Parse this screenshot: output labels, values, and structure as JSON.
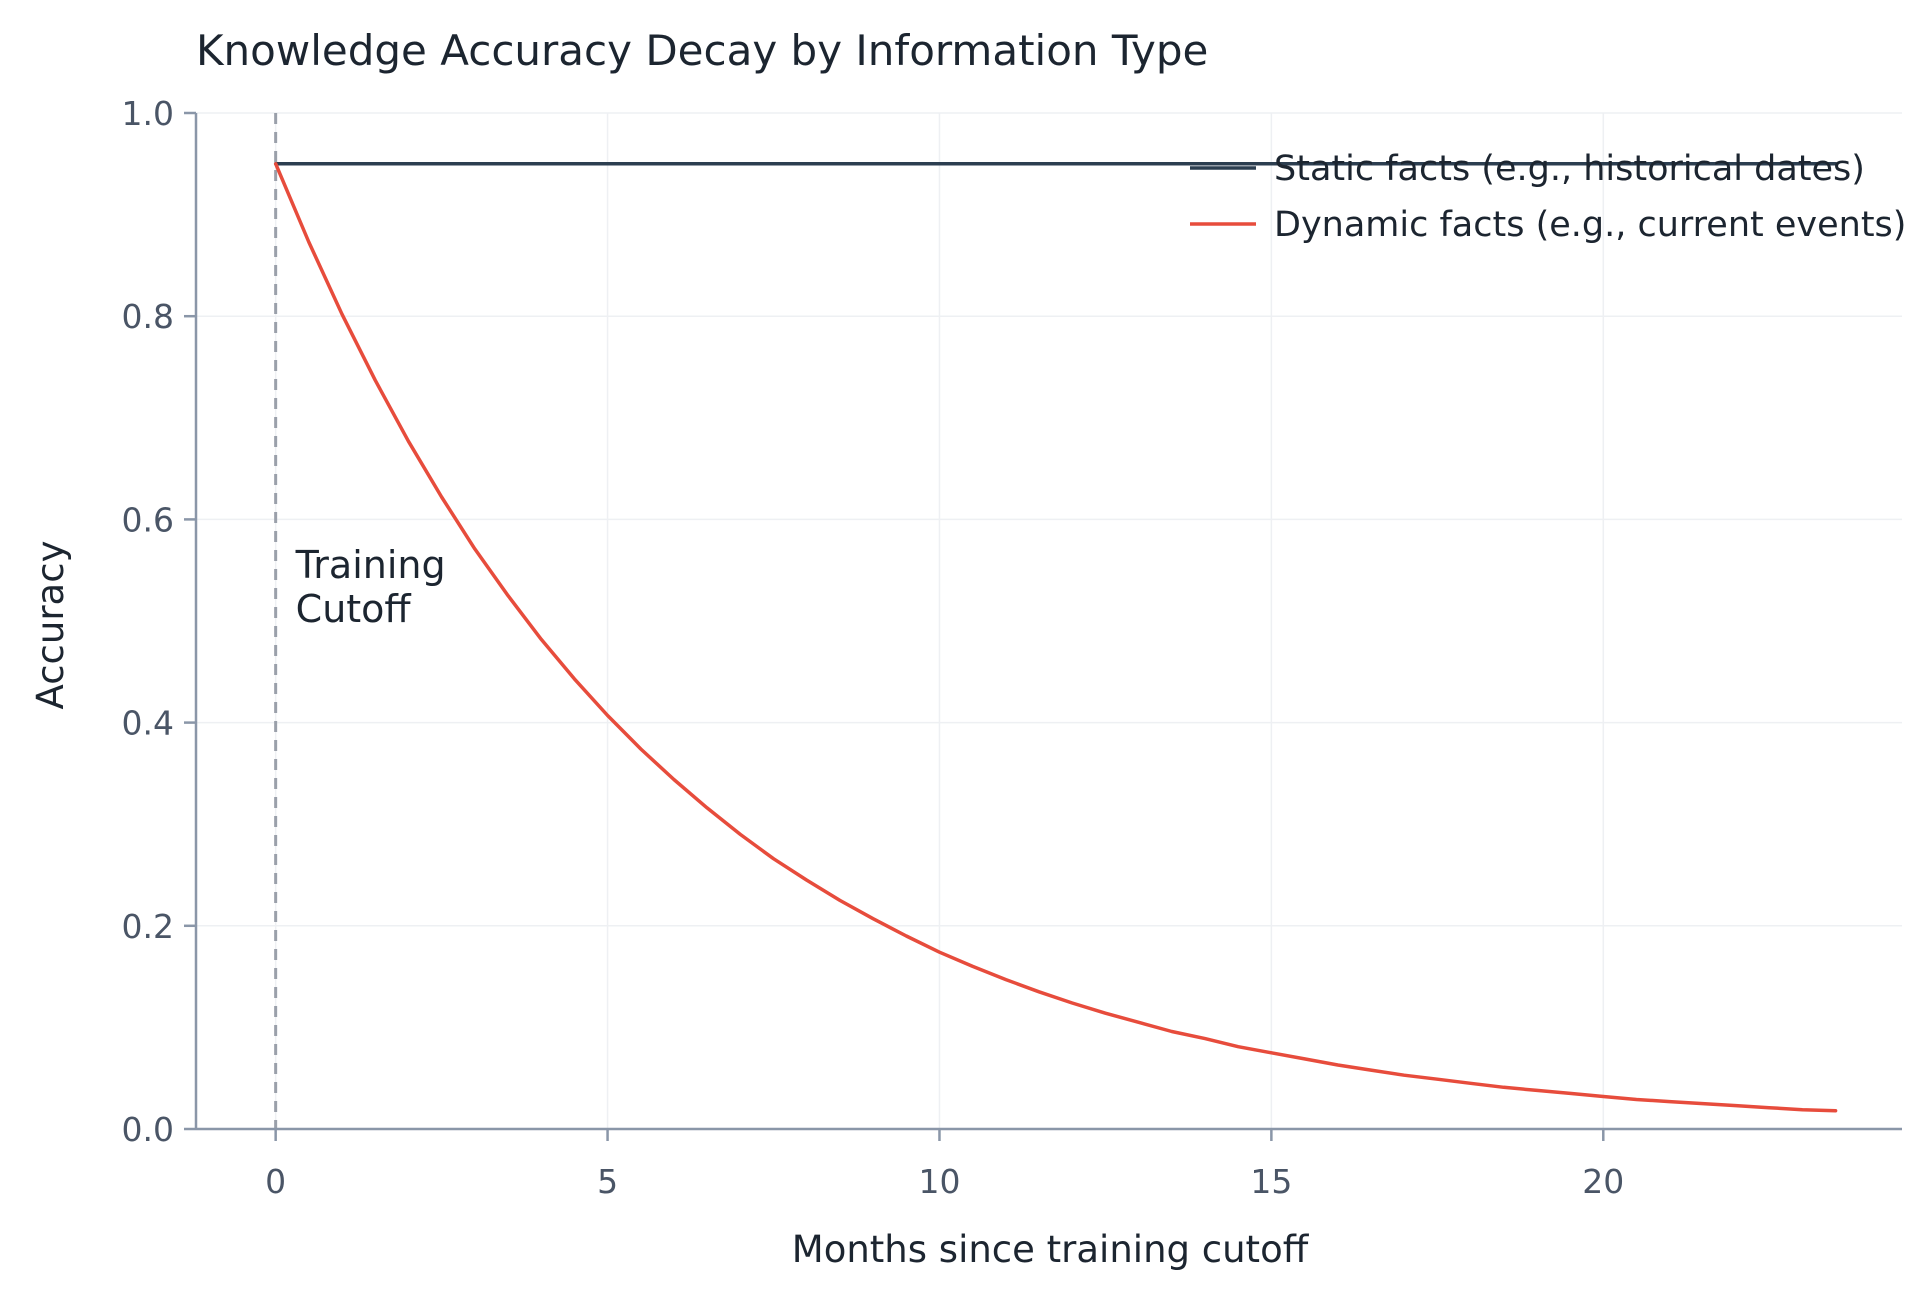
{
  "chart_data": {
    "type": "line",
    "title": "Knowledge Accuracy Decay by Information Type",
    "xlabel": "Months since training cutoff",
    "ylabel": "Accuracy",
    "xlim": [
      -1.2,
      24.5
    ],
    "ylim": [
      0,
      1.0
    ],
    "xticks": [
      0,
      5,
      10,
      15,
      20
    ],
    "xtick_labels": [
      "0",
      "5",
      "10",
      "15",
      "20"
    ],
    "yticks": [
      0,
      0.2,
      0.4,
      0.6,
      0.8,
      1.0
    ],
    "ytick_labels": [
      "0.0",
      "0.2",
      "0.4",
      "0.6",
      "0.8",
      "1.0"
    ],
    "grid": true,
    "legend_position": "top-right",
    "series": [
      {
        "name": "Static facts (e.g., historical dates)",
        "color": "#2c3e50",
        "x": [
          0,
          2,
          4,
          6,
          8,
          10,
          12,
          14,
          16,
          18,
          20,
          22,
          23.5
        ],
        "y": [
          0.95,
          0.95,
          0.95,
          0.95,
          0.95,
          0.95,
          0.95,
          0.95,
          0.95,
          0.95,
          0.95,
          0.95,
          0.95
        ]
      },
      {
        "name": "Dynamic facts (e.g., current events)",
        "color": "#e74c3c",
        "x": [
          0,
          0.5,
          1,
          1.5,
          2,
          2.5,
          3,
          3.5,
          4,
          4.5,
          5,
          5.5,
          6,
          6.5,
          7,
          7.5,
          8,
          8.5,
          9,
          9.5,
          10,
          10.5,
          11,
          11.5,
          12,
          12.5,
          13,
          13.5,
          14,
          14.5,
          15,
          15.5,
          16,
          16.5,
          17,
          17.5,
          18,
          18.5,
          19,
          19.5,
          20,
          20.5,
          21,
          21.5,
          22,
          22.5,
          23,
          23.5
        ],
        "y": [
          0.95,
          0.873,
          0.802,
          0.737,
          0.677,
          0.622,
          0.571,
          0.525,
          0.482,
          0.443,
          0.407,
          0.374,
          0.344,
          0.316,
          0.29,
          0.266,
          0.245,
          0.225,
          0.207,
          0.19,
          0.174,
          0.16,
          0.147,
          0.135,
          0.124,
          0.114,
          0.105,
          0.096,
          0.089,
          0.081,
          0.075,
          0.069,
          0.063,
          0.058,
          0.053,
          0.049,
          0.045,
          0.041,
          0.038,
          0.035,
          0.032,
          0.029,
          0.027,
          0.025,
          0.023,
          0.021,
          0.019,
          0.018
        ]
      }
    ],
    "annotations": [
      {
        "text": "Training\nCutoff",
        "x": 0,
        "y": 0.55,
        "color": "#1c2530"
      }
    ],
    "reference_lines": [
      {
        "type": "vertical",
        "x": 0,
        "style": "dashed",
        "color": "#9aa0aa"
      }
    ],
    "colors": {
      "axis": "#8a96a8",
      "grid": "#eef0f3"
    }
  }
}
